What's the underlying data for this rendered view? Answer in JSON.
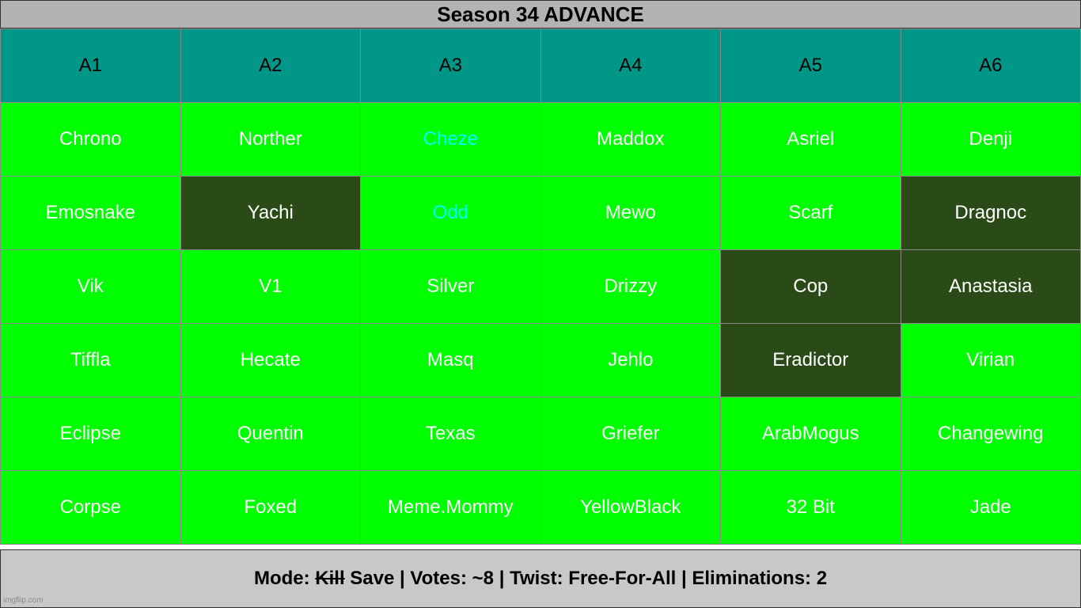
{
  "title": "Season 34 ADVANCE",
  "columns": [
    "A1",
    "A2",
    "A3",
    "A4",
    "A5",
    "A6"
  ],
  "rows": [
    [
      {
        "name": "Chrono",
        "status": "active"
      },
      {
        "name": "Norther",
        "status": "active"
      },
      {
        "name": "Cheze",
        "status": "cyan"
      },
      {
        "name": "Maddox",
        "status": "active"
      },
      {
        "name": "Asriel",
        "status": "active"
      },
      {
        "name": "Denji",
        "status": "active"
      }
    ],
    [
      {
        "name": "Emosnake",
        "status": "active"
      },
      {
        "name": "Yachi",
        "status": "eliminated"
      },
      {
        "name": "Odd",
        "status": "cyan"
      },
      {
        "name": "Mewo",
        "status": "active"
      },
      {
        "name": "Scarf",
        "status": "active"
      },
      {
        "name": "Dragnoc",
        "status": "eliminated"
      }
    ],
    [
      {
        "name": "Vik",
        "status": "active"
      },
      {
        "name": "V1",
        "status": "active"
      },
      {
        "name": "Silver",
        "status": "active"
      },
      {
        "name": "Drizzy",
        "status": "active"
      },
      {
        "name": "Cop",
        "status": "eliminated"
      },
      {
        "name": "Anastasia",
        "status": "eliminated"
      }
    ],
    [
      {
        "name": "Tiffla",
        "status": "active"
      },
      {
        "name": "Hecate",
        "status": "active"
      },
      {
        "name": "Masq",
        "status": "active"
      },
      {
        "name": "Jehlo",
        "status": "active"
      },
      {
        "name": "Eradictor",
        "status": "eliminated"
      },
      {
        "name": "Virian",
        "status": "active"
      }
    ],
    [
      {
        "name": "Eclipse",
        "status": "active"
      },
      {
        "name": "Quentin",
        "status": "active"
      },
      {
        "name": "Texas",
        "status": "active"
      },
      {
        "name": "Griefer",
        "status": "active"
      },
      {
        "name": "ArabMogus",
        "status": "active"
      },
      {
        "name": "Changewing",
        "status": "active"
      }
    ],
    [
      {
        "name": "Corpse",
        "status": "active"
      },
      {
        "name": "Foxed",
        "status": "active"
      },
      {
        "name": "Meme.Mommy",
        "status": "active"
      },
      {
        "name": "YellowBlack",
        "status": "active"
      },
      {
        "name": "32 Bit",
        "status": "active"
      },
      {
        "name": "Jade",
        "status": "active"
      }
    ]
  ],
  "footer": {
    "mode_label": "Mode:",
    "mode_struck": "Kill",
    "mode_value": "Save",
    "votes": "| Votes: ~8",
    "twist": "| Twist: Free-For-All",
    "eliminations": "| Eliminations: 2"
  },
  "watermark": "imgflip.com",
  "colors": {
    "header": "#009688",
    "active": "#00ff00",
    "eliminated": "#2a4a18",
    "cyan_text": "#00ffff"
  }
}
